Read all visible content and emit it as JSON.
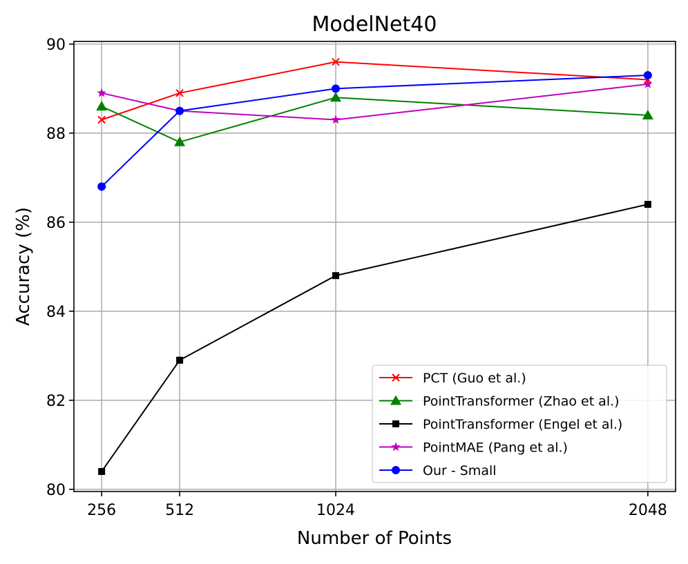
{
  "chart_data": {
    "type": "line",
    "title": "ModelNet40",
    "xlabel": "Number of Points",
    "ylabel": "Accuracy (%)",
    "x": [
      256,
      512,
      1024,
      2048
    ],
    "xticks": [
      "256",
      "512",
      "1024",
      "2048"
    ],
    "yticks": [
      "80",
      "82",
      "84",
      "86",
      "88",
      "90"
    ],
    "ytick_values": [
      80,
      82,
      84,
      86,
      88,
      90
    ],
    "xlim": [
      165,
      2139
    ],
    "ylim": [
      79.95,
      90.06
    ],
    "grid": true,
    "legend_position": "bottom-right",
    "series": [
      {
        "name": "PCT (Guo et al.)",
        "color": "#ff0000",
        "marker": "x",
        "values": [
          88.3,
          88.9,
          89.6,
          89.2
        ]
      },
      {
        "name": "PointTransformer (Zhao et al.)",
        "color": "#008000",
        "marker": "triangle",
        "values": [
          88.6,
          87.8,
          88.8,
          88.4
        ]
      },
      {
        "name": "PointTransformer (Engel et al.)",
        "color": "#000000",
        "marker": "square",
        "values": [
          80.4,
          82.9,
          84.8,
          86.4
        ]
      },
      {
        "name": "PointMAE (Pang et al.)",
        "color": "#bf00bf",
        "marker": "star",
        "values": [
          88.9,
          88.5,
          88.3,
          89.1
        ]
      },
      {
        "name": "Our - Small",
        "color": "#0000ff",
        "marker": "circle",
        "values": [
          86.8,
          88.5,
          89.0,
          89.3
        ]
      }
    ]
  }
}
